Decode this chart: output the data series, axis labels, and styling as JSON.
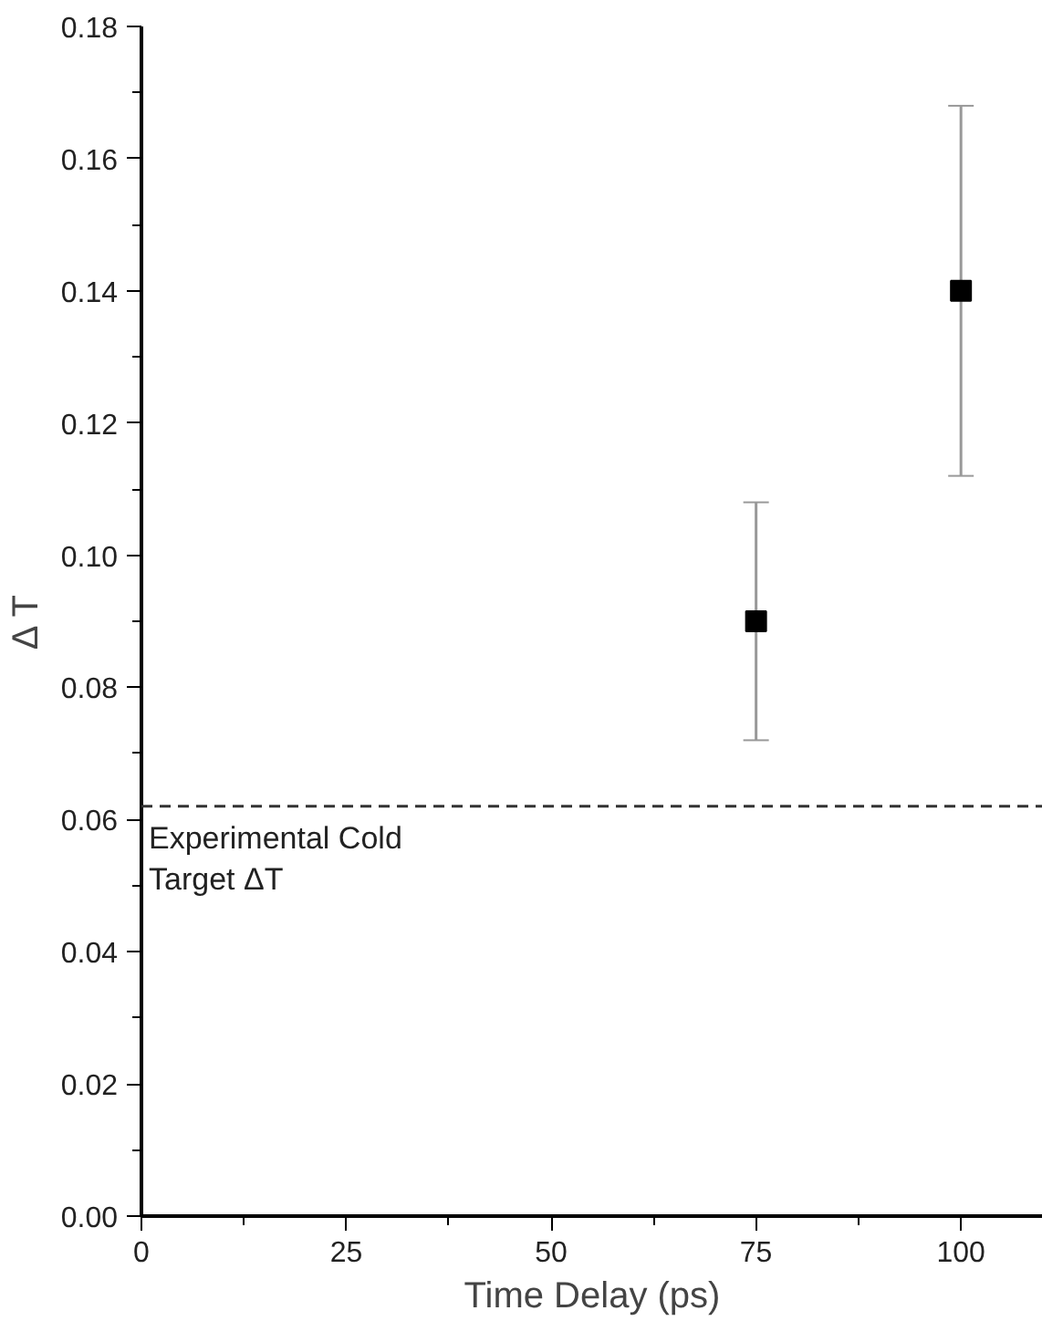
{
  "chart_data": {
    "type": "scatter",
    "xlabel": "Time Delay (ps)",
    "ylabel": "Δ T",
    "x": [
      75,
      100
    ],
    "series": [
      {
        "color": "#000000",
        "values": [
          0.09,
          0.14
        ],
        "errors": [
          [
            0.072,
            0.108
          ],
          [
            0.112,
            0.168
          ]
        ]
      }
    ],
    "xlim": [
      0,
      110
    ],
    "xticks": [
      0,
      25,
      50,
      75,
      100
    ],
    "ylim": [
      0,
      0.18
    ],
    "yticks": [
      {
        "value": 0,
        "label": "0.00"
      },
      {
        "value": 0.02,
        "label": "0.02"
      },
      {
        "value": 0.04,
        "label": "0.04"
      },
      {
        "value": 0.06,
        "label": "0.06"
      },
      {
        "value": 0.08,
        "label": "0.08"
      },
      {
        "value": 0.1,
        "label": "0.10"
      },
      {
        "value": 0.12,
        "label": "0.12"
      },
      {
        "value": 0.14,
        "label": "0.14"
      },
      {
        "value": 0.16,
        "label": "0.16"
      },
      {
        "value": 0.18,
        "label": "0.18"
      }
    ],
    "ref_lines": [
      {
        "axis": "y",
        "value": 0.062,
        "label": "Experimental Cold\nTarget ΔT",
        "color": "#333333",
        "line_style": "dashed"
      }
    ],
    "marker": "square",
    "grid": false
  }
}
